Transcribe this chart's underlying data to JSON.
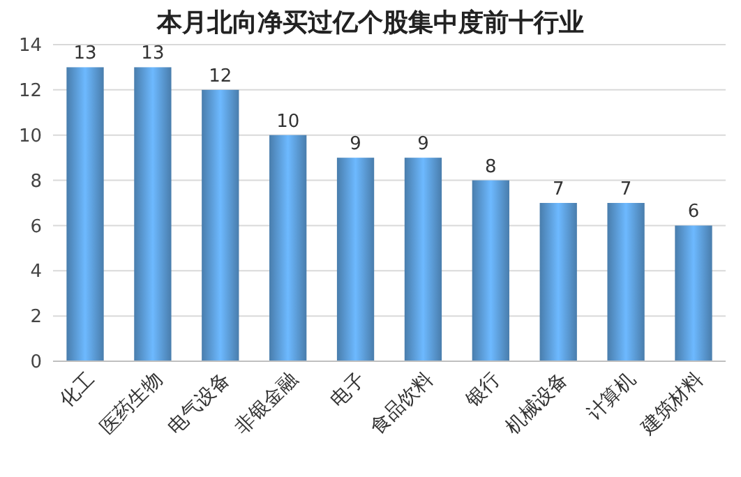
{
  "chart_data": {
    "type": "bar",
    "title": "本月北向净买过亿个股集中度前十行业",
    "categories": [
      "化工",
      "医药生物",
      "电气设备",
      "非银金融",
      "电子",
      "食品饮料",
      "银行",
      "机械设备",
      "计算机",
      "建筑材料"
    ],
    "values": [
      13,
      13,
      12,
      10,
      9,
      9,
      8,
      7,
      7,
      6
    ],
    "color": "#5b9bd5",
    "ylim": [
      0,
      14
    ],
    "yticks": [
      0,
      2,
      4,
      6,
      8,
      10,
      12,
      14
    ],
    "grid": "y",
    "data_labels": true
  }
}
